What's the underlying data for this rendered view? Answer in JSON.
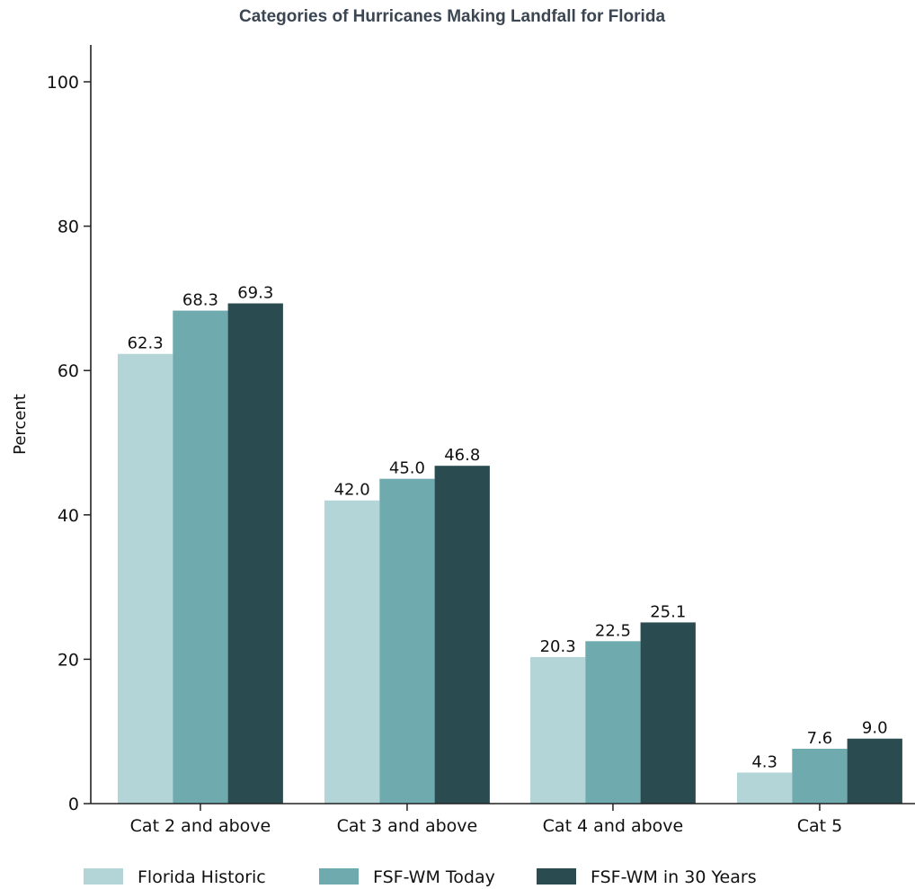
{
  "chart_data": {
    "type": "bar",
    "title": "Categories of Hurricanes Making Landfall for Florida",
    "xlabel": "",
    "ylabel": "Percent",
    "ylim": [
      0,
      105
    ],
    "yticks": [
      0,
      20,
      40,
      60,
      80,
      100
    ],
    "categories": [
      "Cat 2 and above",
      "Cat 3 and above",
      "Cat 4 and above",
      "Cat 5"
    ],
    "series": [
      {
        "name": "Florida Historic",
        "color": "#b3d5d7",
        "values": [
          62.3,
          42.0,
          20.3,
          4.3
        ],
        "labels": [
          "62.3",
          "42.0",
          "20.3",
          "4.3"
        ]
      },
      {
        "name": "FSF-WM Today",
        "color": "#6eaaae",
        "values": [
          68.3,
          45.0,
          22.5,
          7.6
        ],
        "labels": [
          "68.3",
          "45.0",
          "22.5",
          "7.6"
        ]
      },
      {
        "name": "FSF-WM in 30 Years",
        "color": "#2a4b50",
        "values": [
          69.3,
          46.8,
          25.1,
          9.0
        ],
        "labels": [
          "69.3",
          "46.8",
          "25.1",
          "9.0"
        ]
      }
    ],
    "grid": false,
    "legend": "bottom-center"
  }
}
